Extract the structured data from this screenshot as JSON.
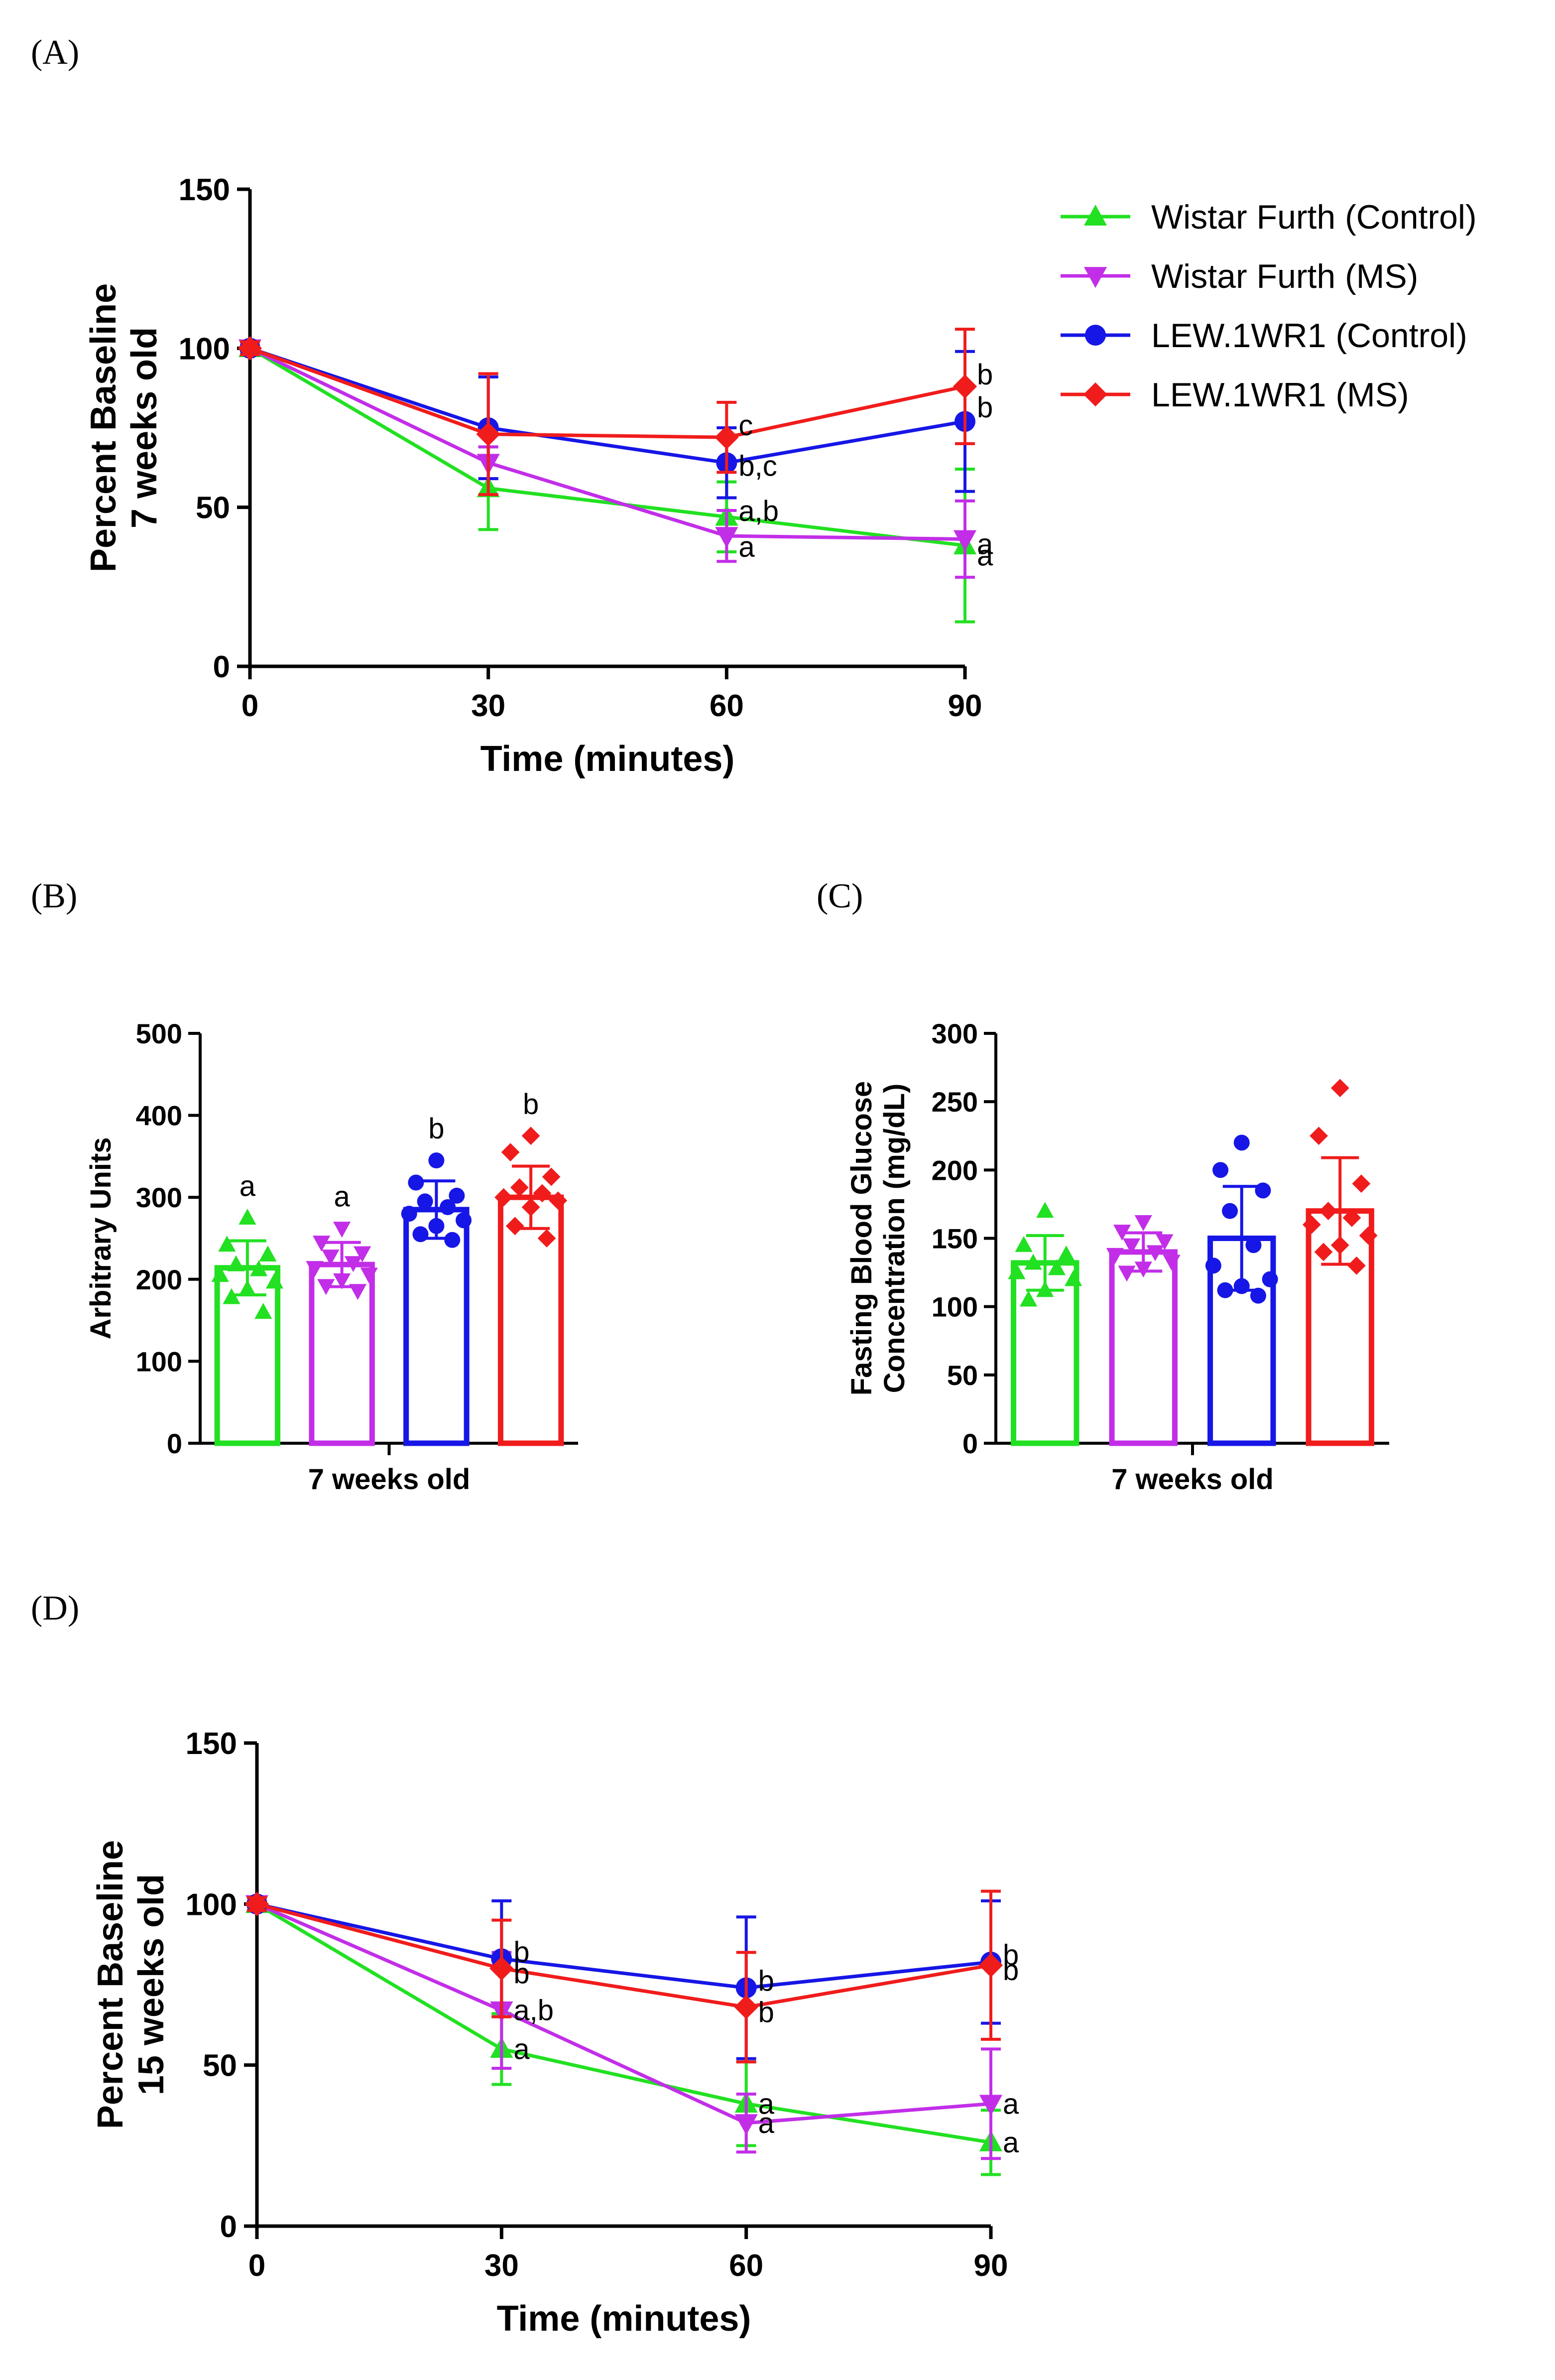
{
  "panels": {
    "A": "(A)",
    "B": "(B)",
    "C": "(C)",
    "D": "(D)"
  },
  "colors": {
    "wf_control": "#22e022",
    "wf_ms": "#c22ee8",
    "lew_control": "#1616e6",
    "lew_ms": "#f01c1c"
  },
  "legend": [
    {
      "label": "Wistar Furth (Control)",
      "marker": "triangle-up",
      "color": "#22e022"
    },
    {
      "label": "Wistar Furth (MS)",
      "marker": "triangle-down",
      "color": "#c22ee8"
    },
    {
      "label": "LEW.1WR1 (Control)",
      "marker": "circle",
      "color": "#1616e6"
    },
    {
      "label": "LEW.1WR1 (MS)",
      "marker": "diamond",
      "color": "#f01c1c"
    }
  ],
  "chart_data": [
    {
      "id": "A",
      "type": "line",
      "ylabel": [
        "Percent Baseline",
        "7 weeks old"
      ],
      "xlabel": "Time (minutes)",
      "x": [
        0,
        30,
        60,
        90
      ],
      "ylim": [
        0,
        150
      ],
      "yticks": [
        0,
        50,
        100,
        150
      ],
      "xticks": [
        0,
        30,
        60,
        90
      ],
      "series": [
        {
          "name": "Wistar Furth (Control)",
          "values": [
            100,
            56,
            47,
            38
          ],
          "errors": [
            2,
            13,
            11,
            24
          ],
          "annotations": [
            "",
            "",
            "a,b",
            "a"
          ]
        },
        {
          "name": "Wistar Furth (MS)",
          "values": [
            100,
            64,
            41,
            40
          ],
          "errors": [
            2,
            5,
            8,
            12
          ],
          "annotations": [
            "",
            "",
            "a",
            "a"
          ]
        },
        {
          "name": "LEW.1WR1 (Control)",
          "values": [
            100,
            75,
            64,
            77
          ],
          "errors": [
            2,
            16,
            11,
            22
          ],
          "annotations": [
            "",
            "",
            "b,c",
            "b"
          ]
        },
        {
          "name": "LEW.1WR1 (MS)",
          "values": [
            100,
            73,
            72,
            88
          ],
          "errors": [
            2,
            19,
            11,
            18
          ],
          "annotations": [
            "",
            "",
            "c",
            "b"
          ]
        }
      ]
    },
    {
      "id": "B",
      "type": "bar",
      "ylabel": "Arbitrary Units",
      "xlabel": "7 weeks old",
      "ylim": [
        0,
        500
      ],
      "yticks": [
        0,
        100,
        200,
        300,
        400,
        500
      ],
      "categories": [
        "Wistar Furth (Control)",
        "Wistar Furth (MS)",
        "LEW.1WR1 (Control)",
        "LEW.1WR1 (MS)"
      ],
      "values": [
        214,
        218,
        285,
        300
      ],
      "errors": [
        33,
        27,
        35,
        38
      ],
      "annotations": [
        "a",
        "a",
        "b",
        "b"
      ],
      "points": [
        [
          275,
          242,
          230,
          218,
          212,
          205,
          197,
          188,
          178,
          160
        ],
        [
          262,
          245,
          232,
          228,
          220,
          214,
          206,
          199,
          192,
          186
        ],
        [
          345,
          318,
          302,
          295,
          288,
          280,
          272,
          265,
          255,
          248
        ],
        [
          375,
          355,
          325,
          312,
          305,
          300,
          296,
          288,
          265,
          250
        ]
      ]
    },
    {
      "id": "C",
      "type": "bar",
      "ylabel": [
        "Fasting Blood Glucose",
        "Concentration (mg/dL)"
      ],
      "xlabel": "7 weeks old",
      "ylim": [
        0,
        300
      ],
      "yticks": [
        0,
        50,
        100,
        150,
        200,
        250,
        300
      ],
      "categories": [
        "Wistar Furth (Control)",
        "Wistar Furth (MS)",
        "LEW.1WR1 (Control)",
        "LEW.1WR1 (MS)"
      ],
      "values": [
        132,
        140,
        150,
        170
      ],
      "errors": [
        20,
        14,
        38,
        39
      ],
      "annotations": [
        "",
        "",
        "",
        ""
      ],
      "points": [
        [
          170,
          145,
          138,
          132,
          128,
          125,
          120,
          112,
          105
        ],
        [
          162,
          155,
          148,
          145,
          140,
          138,
          133,
          128,
          125
        ],
        [
          220,
          200,
          185,
          170,
          145,
          130,
          120,
          115,
          112,
          108
        ],
        [
          260,
          225,
          190,
          170,
          165,
          160,
          152,
          145,
          140,
          130
        ]
      ]
    },
    {
      "id": "D",
      "type": "line",
      "ylabel": [
        "Percent Baseline",
        "15 weeks old"
      ],
      "xlabel": "Time (minutes)",
      "x": [
        0,
        30,
        60,
        90
      ],
      "ylim": [
        0,
        150
      ],
      "yticks": [
        0,
        50,
        100,
        150
      ],
      "xticks": [
        0,
        30,
        60,
        90
      ],
      "series": [
        {
          "name": "Wistar Furth (Control)",
          "values": [
            100,
            55,
            38,
            26
          ],
          "errors": [
            2,
            11,
            13,
            10
          ],
          "annotations": [
            "",
            "a",
            "a",
            "a"
          ]
        },
        {
          "name": "Wistar Furth (MS)",
          "values": [
            100,
            67,
            32,
            38
          ],
          "errors": [
            2,
            18,
            9,
            17
          ],
          "annotations": [
            "",
            "a,b",
            "a",
            "a"
          ]
        },
        {
          "name": "LEW.1WR1 (Control)",
          "values": [
            100,
            83,
            74,
            82
          ],
          "errors": [
            2,
            18,
            22,
            19
          ],
          "annotations": [
            "",
            "b",
            "b",
            "b"
          ]
        },
        {
          "name": "LEW.1WR1 (MS)",
          "values": [
            100,
            80,
            68,
            81
          ],
          "errors": [
            2,
            15,
            17,
            23
          ],
          "annotations": [
            "",
            "b",
            "b",
            "b"
          ]
        }
      ]
    }
  ]
}
